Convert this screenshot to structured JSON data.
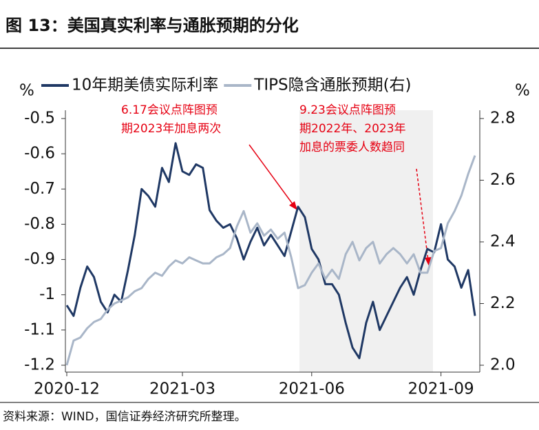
{
  "title": "图 13：美国真实利率与通胀预期的分化",
  "source": "资料来源：WIND，国信证券经济研究所整理。",
  "chart_data": {
    "type": "line",
    "ylabel": "%",
    "y2label": "%",
    "categories": [
      "2020-12",
      null,
      null,
      null,
      null,
      null,
      null,
      null,
      null,
      null,
      null,
      null,
      null,
      null,
      null,
      null,
      null,
      "2021-03",
      null,
      null,
      null,
      null,
      null,
      null,
      null,
      null,
      null,
      null,
      null,
      null,
      null,
      null,
      null,
      null,
      null,
      null,
      "2021-06",
      null,
      null,
      null,
      null,
      null,
      null,
      null,
      null,
      null,
      null,
      null,
      null,
      null,
      null,
      null,
      null,
      null,
      null,
      "2021-09",
      null,
      null,
      null,
      null,
      null
    ],
    "series": [
      {
        "name": "10年期美债实际利率",
        "color": "#1f3864",
        "axis": "y",
        "values": [
          -1.03,
          -1.06,
          -0.98,
          -0.92,
          -0.95,
          -1.02,
          -1.05,
          -1.0,
          -1.02,
          -0.93,
          -0.83,
          -0.7,
          -0.72,
          -0.75,
          -0.64,
          -0.68,
          -0.57,
          -0.65,
          -0.66,
          -0.63,
          -0.64,
          -0.76,
          -0.79,
          -0.81,
          -0.8,
          -0.84,
          -0.9,
          -0.85,
          -0.81,
          -0.86,
          -0.83,
          -0.86,
          -0.89,
          -0.82,
          -0.75,
          -0.78,
          -0.87,
          -0.9,
          -0.97,
          -0.97,
          -1.0,
          -1.08,
          -1.15,
          -1.18,
          -1.08,
          -1.02,
          -1.1,
          -1.06,
          -1.02,
          -0.98,
          -0.95,
          -1.0,
          -0.93,
          -0.87,
          -0.88,
          -0.8,
          -0.9,
          -0.92,
          -0.98,
          -0.93,
          -1.06
        ]
      },
      {
        "name": "TIPS隐含通胀预期(右)",
        "color": "#a9b6c8",
        "axis": "y2",
        "values": [
          2.0,
          2.08,
          2.09,
          2.12,
          2.14,
          2.15,
          2.18,
          2.2,
          2.21,
          2.22,
          2.24,
          2.25,
          2.28,
          2.3,
          2.29,
          2.32,
          2.34,
          2.33,
          2.35,
          2.34,
          2.33,
          2.33,
          2.35,
          2.36,
          2.38,
          2.45,
          2.5,
          2.43,
          2.46,
          2.42,
          2.44,
          2.41,
          2.43,
          2.35,
          2.25,
          2.26,
          2.3,
          2.33,
          2.28,
          2.31,
          2.28,
          2.36,
          2.4,
          2.34,
          2.38,
          2.4,
          2.33,
          2.36,
          2.38,
          2.36,
          2.33,
          2.36,
          2.3,
          2.3,
          2.37,
          2.38,
          2.46,
          2.5,
          2.55,
          2.62,
          2.68
        ]
      }
    ],
    "ylim": [
      -1.2,
      -0.5
    ],
    "yticks": [
      -0.5,
      -0.6,
      -0.7,
      -0.8,
      -0.9,
      -1,
      -1.1,
      -1.2
    ],
    "y2lim": [
      2.0,
      2.8
    ],
    "y2ticks": [
      {
        "value": 2.0,
        "label": "2.0"
      },
      2.2,
      2.4,
      2.6,
      2.8
    ],
    "annotations": [
      [
        "6.17会议点阵图预",
        "期2023年加息两次"
      ],
      [
        "9.23会议点阵图预",
        "期2022年、2023年",
        "加息的票委人数趋同"
      ]
    ],
    "grid": false
  }
}
